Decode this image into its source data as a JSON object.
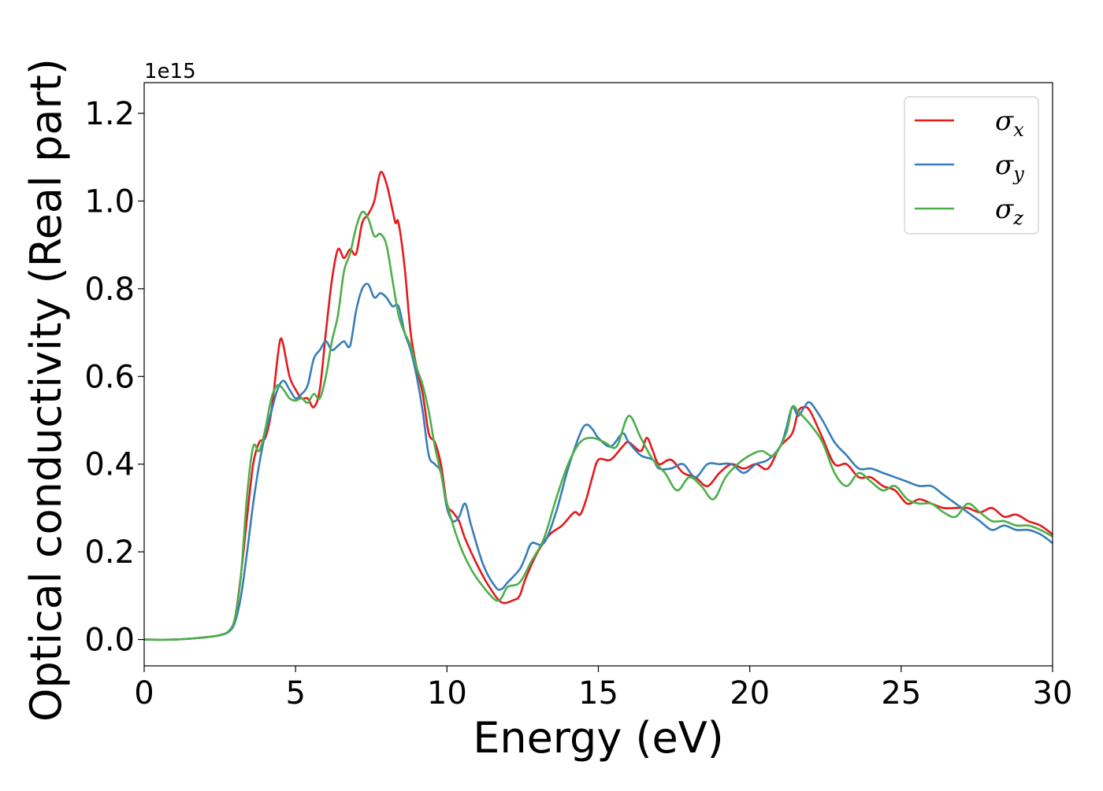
{
  "chart_data": {
    "type": "line",
    "xlabel": "Energy (eV)",
    "ylabel": "Optical conductivity (Real part)",
    "y_offset_label": "1e15",
    "xlim": [
      0,
      30
    ],
    "ylim": [
      -0.06,
      1.27
    ],
    "x_ticks": [
      0,
      5,
      10,
      15,
      20,
      25,
      30
    ],
    "x_tick_labels": [
      "0",
      "5",
      "10",
      "15",
      "20",
      "25",
      "30"
    ],
    "y_ticks": [
      0.0,
      0.2,
      0.4,
      0.6,
      0.8,
      1.0,
      1.2
    ],
    "y_tick_labels": [
      "0.0",
      "0.2",
      "0.4",
      "0.6",
      "0.8",
      "1.0",
      "1.2"
    ],
    "grid": false,
    "legend_position": "top-right",
    "series": [
      {
        "name": "σ_x",
        "label_base": "σ",
        "label_sub": "x",
        "color": "#e41a1c",
        "points": [
          [
            0,
            0
          ],
          [
            1,
            0
          ],
          [
            2,
            0.005
          ],
          [
            2.5,
            0.01
          ],
          [
            2.8,
            0.02
          ],
          [
            3.0,
            0.05
          ],
          [
            3.2,
            0.15
          ],
          [
            3.4,
            0.28
          ],
          [
            3.6,
            0.4
          ],
          [
            3.8,
            0.45
          ],
          [
            4.0,
            0.46
          ],
          [
            4.2,
            0.52
          ],
          [
            4.4,
            0.64
          ],
          [
            4.5,
            0.685
          ],
          [
            4.6,
            0.67
          ],
          [
            4.8,
            0.6
          ],
          [
            5.0,
            0.57
          ],
          [
            5.2,
            0.55
          ],
          [
            5.4,
            0.55
          ],
          [
            5.6,
            0.53
          ],
          [
            5.8,
            0.57
          ],
          [
            6.0,
            0.7
          ],
          [
            6.2,
            0.82
          ],
          [
            6.4,
            0.89
          ],
          [
            6.6,
            0.87
          ],
          [
            6.8,
            0.89
          ],
          [
            7.0,
            0.88
          ],
          [
            7.2,
            0.95
          ],
          [
            7.4,
            0.97
          ],
          [
            7.6,
            1.0
          ],
          [
            7.8,
            1.065
          ],
          [
            8.0,
            1.04
          ],
          [
            8.2,
            0.98
          ],
          [
            8.3,
            0.95
          ],
          [
            8.4,
            0.95
          ],
          [
            8.6,
            0.85
          ],
          [
            8.8,
            0.7
          ],
          [
            9.0,
            0.62
          ],
          [
            9.2,
            0.56
          ],
          [
            9.4,
            0.47
          ],
          [
            9.6,
            0.45
          ],
          [
            9.8,
            0.4
          ],
          [
            10.0,
            0.31
          ],
          [
            10.2,
            0.29
          ],
          [
            10.4,
            0.27
          ],
          [
            10.6,
            0.23
          ],
          [
            11.0,
            0.17
          ],
          [
            11.4,
            0.12
          ],
          [
            11.8,
            0.085
          ],
          [
            12.2,
            0.09
          ],
          [
            12.4,
            0.1
          ],
          [
            12.6,
            0.14
          ],
          [
            13.0,
            0.2
          ],
          [
            13.4,
            0.24
          ],
          [
            13.8,
            0.26
          ],
          [
            14.2,
            0.29
          ],
          [
            14.4,
            0.285
          ],
          [
            14.6,
            0.32
          ],
          [
            14.8,
            0.37
          ],
          [
            15.0,
            0.41
          ],
          [
            15.4,
            0.41
          ],
          [
            15.8,
            0.44
          ],
          [
            16.0,
            0.45
          ],
          [
            16.4,
            0.43
          ],
          [
            16.6,
            0.46
          ],
          [
            16.8,
            0.43
          ],
          [
            17.0,
            0.4
          ],
          [
            17.4,
            0.41
          ],
          [
            17.8,
            0.38
          ],
          [
            18.2,
            0.37
          ],
          [
            18.6,
            0.35
          ],
          [
            19.0,
            0.38
          ],
          [
            19.4,
            0.4
          ],
          [
            19.8,
            0.39
          ],
          [
            20.2,
            0.4
          ],
          [
            20.6,
            0.39
          ],
          [
            21.0,
            0.44
          ],
          [
            21.4,
            0.47
          ],
          [
            21.6,
            0.52
          ],
          [
            21.8,
            0.53
          ],
          [
            22.0,
            0.52
          ],
          [
            22.4,
            0.46
          ],
          [
            22.8,
            0.4
          ],
          [
            23.2,
            0.4
          ],
          [
            23.6,
            0.37
          ],
          [
            24.0,
            0.37
          ],
          [
            24.4,
            0.35
          ],
          [
            24.8,
            0.34
          ],
          [
            25.2,
            0.31
          ],
          [
            25.6,
            0.32
          ],
          [
            26.0,
            0.31
          ],
          [
            26.4,
            0.3
          ],
          [
            26.8,
            0.3
          ],
          [
            27.2,
            0.3
          ],
          [
            27.6,
            0.29
          ],
          [
            28.0,
            0.3
          ],
          [
            28.4,
            0.28
          ],
          [
            28.8,
            0.285
          ],
          [
            29.2,
            0.27
          ],
          [
            29.6,
            0.26
          ],
          [
            30.0,
            0.24
          ]
        ]
      },
      {
        "name": "σ_y",
        "label_base": "σ",
        "label_sub": "y",
        "color": "#377eb8",
        "points": [
          [
            0,
            0
          ],
          [
            1,
            0
          ],
          [
            2,
            0.005
          ],
          [
            2.5,
            0.01
          ],
          [
            2.8,
            0.018
          ],
          [
            3.0,
            0.04
          ],
          [
            3.2,
            0.1
          ],
          [
            3.4,
            0.2
          ],
          [
            3.6,
            0.31
          ],
          [
            3.8,
            0.4
          ],
          [
            4.0,
            0.47
          ],
          [
            4.2,
            0.52
          ],
          [
            4.4,
            0.57
          ],
          [
            4.6,
            0.59
          ],
          [
            4.8,
            0.57
          ],
          [
            5.0,
            0.55
          ],
          [
            5.2,
            0.56
          ],
          [
            5.4,
            0.58
          ],
          [
            5.6,
            0.64
          ],
          [
            5.8,
            0.66
          ],
          [
            6.0,
            0.68
          ],
          [
            6.2,
            0.66
          ],
          [
            6.4,
            0.67
          ],
          [
            6.6,
            0.68
          ],
          [
            6.8,
            0.67
          ],
          [
            7.0,
            0.75
          ],
          [
            7.2,
            0.8
          ],
          [
            7.4,
            0.81
          ],
          [
            7.6,
            0.78
          ],
          [
            7.8,
            0.79
          ],
          [
            8.0,
            0.78
          ],
          [
            8.2,
            0.76
          ],
          [
            8.4,
            0.76
          ],
          [
            8.6,
            0.7
          ],
          [
            8.8,
            0.66
          ],
          [
            9.0,
            0.6
          ],
          [
            9.2,
            0.52
          ],
          [
            9.4,
            0.42
          ],
          [
            9.6,
            0.4
          ],
          [
            9.8,
            0.38
          ],
          [
            10.0,
            0.3
          ],
          [
            10.2,
            0.27
          ],
          [
            10.4,
            0.28
          ],
          [
            10.6,
            0.31
          ],
          [
            10.8,
            0.26
          ],
          [
            11.2,
            0.17
          ],
          [
            11.6,
            0.12
          ],
          [
            11.8,
            0.115
          ],
          [
            12.0,
            0.13
          ],
          [
            12.4,
            0.16
          ],
          [
            12.6,
            0.19
          ],
          [
            12.8,
            0.22
          ],
          [
            13.2,
            0.22
          ],
          [
            13.6,
            0.29
          ],
          [
            14.0,
            0.39
          ],
          [
            14.4,
            0.47
          ],
          [
            14.6,
            0.49
          ],
          [
            14.8,
            0.48
          ],
          [
            15.0,
            0.46
          ],
          [
            15.4,
            0.44
          ],
          [
            15.8,
            0.47
          ],
          [
            16.0,
            0.45
          ],
          [
            16.4,
            0.42
          ],
          [
            16.8,
            0.41
          ],
          [
            17.0,
            0.39
          ],
          [
            17.4,
            0.39
          ],
          [
            17.8,
            0.4
          ],
          [
            18.2,
            0.37
          ],
          [
            18.6,
            0.4
          ],
          [
            19.0,
            0.4
          ],
          [
            19.4,
            0.4
          ],
          [
            19.8,
            0.38
          ],
          [
            20.2,
            0.4
          ],
          [
            20.6,
            0.41
          ],
          [
            21.0,
            0.44
          ],
          [
            21.2,
            0.48
          ],
          [
            21.4,
            0.53
          ],
          [
            21.6,
            0.51
          ],
          [
            21.8,
            0.53
          ],
          [
            22.0,
            0.54
          ],
          [
            22.4,
            0.5
          ],
          [
            22.8,
            0.45
          ],
          [
            23.2,
            0.42
          ],
          [
            23.6,
            0.39
          ],
          [
            24.0,
            0.39
          ],
          [
            24.4,
            0.38
          ],
          [
            24.8,
            0.37
          ],
          [
            25.2,
            0.36
          ],
          [
            25.6,
            0.35
          ],
          [
            26.0,
            0.35
          ],
          [
            26.4,
            0.33
          ],
          [
            26.8,
            0.31
          ],
          [
            27.2,
            0.29
          ],
          [
            27.6,
            0.27
          ],
          [
            28.0,
            0.25
          ],
          [
            28.4,
            0.26
          ],
          [
            28.8,
            0.25
          ],
          [
            29.2,
            0.25
          ],
          [
            29.6,
            0.24
          ],
          [
            30.0,
            0.22
          ]
        ]
      },
      {
        "name": "σ_z",
        "label_base": "σ",
        "label_sub": "z",
        "color": "#4daf4a",
        "points": [
          [
            0,
            0
          ],
          [
            1,
            0
          ],
          [
            2,
            0.005
          ],
          [
            2.5,
            0.01
          ],
          [
            2.8,
            0.02
          ],
          [
            3.0,
            0.05
          ],
          [
            3.2,
            0.15
          ],
          [
            3.4,
            0.33
          ],
          [
            3.6,
            0.44
          ],
          [
            3.8,
            0.43
          ],
          [
            4.0,
            0.48
          ],
          [
            4.2,
            0.55
          ],
          [
            4.4,
            0.58
          ],
          [
            4.6,
            0.57
          ],
          [
            4.8,
            0.55
          ],
          [
            5.0,
            0.545
          ],
          [
            5.2,
            0.55
          ],
          [
            5.4,
            0.54
          ],
          [
            5.6,
            0.56
          ],
          [
            5.8,
            0.55
          ],
          [
            6.0,
            0.6
          ],
          [
            6.2,
            0.68
          ],
          [
            6.4,
            0.74
          ],
          [
            6.6,
            0.84
          ],
          [
            6.8,
            0.88
          ],
          [
            7.0,
            0.94
          ],
          [
            7.2,
            0.975
          ],
          [
            7.4,
            0.96
          ],
          [
            7.6,
            0.92
          ],
          [
            7.8,
            0.925
          ],
          [
            8.0,
            0.9
          ],
          [
            8.2,
            0.82
          ],
          [
            8.4,
            0.74
          ],
          [
            8.6,
            0.7
          ],
          [
            8.8,
            0.67
          ],
          [
            9.0,
            0.62
          ],
          [
            9.2,
            0.58
          ],
          [
            9.4,
            0.52
          ],
          [
            9.6,
            0.44
          ],
          [
            9.8,
            0.38
          ],
          [
            10.0,
            0.31
          ],
          [
            10.4,
            0.22
          ],
          [
            10.8,
            0.16
          ],
          [
            11.2,
            0.12
          ],
          [
            11.6,
            0.09
          ],
          [
            11.8,
            0.095
          ],
          [
            12.0,
            0.12
          ],
          [
            12.4,
            0.13
          ],
          [
            12.8,
            0.18
          ],
          [
            13.2,
            0.23
          ],
          [
            13.6,
            0.32
          ],
          [
            14.0,
            0.4
          ],
          [
            14.4,
            0.45
          ],
          [
            14.8,
            0.46
          ],
          [
            15.2,
            0.45
          ],
          [
            15.6,
            0.44
          ],
          [
            16.0,
            0.51
          ],
          [
            16.4,
            0.46
          ],
          [
            16.8,
            0.41
          ],
          [
            17.2,
            0.38
          ],
          [
            17.6,
            0.34
          ],
          [
            18.0,
            0.37
          ],
          [
            18.4,
            0.35
          ],
          [
            18.8,
            0.32
          ],
          [
            19.2,
            0.37
          ],
          [
            19.6,
            0.4
          ],
          [
            20.0,
            0.42
          ],
          [
            20.4,
            0.43
          ],
          [
            20.8,
            0.42
          ],
          [
            21.2,
            0.47
          ],
          [
            21.4,
            0.53
          ],
          [
            21.6,
            0.52
          ],
          [
            22.0,
            0.49
          ],
          [
            22.4,
            0.45
          ],
          [
            22.8,
            0.38
          ],
          [
            23.2,
            0.35
          ],
          [
            23.6,
            0.38
          ],
          [
            24.0,
            0.36
          ],
          [
            24.4,
            0.34
          ],
          [
            24.8,
            0.35
          ],
          [
            25.2,
            0.32
          ],
          [
            25.6,
            0.31
          ],
          [
            26.0,
            0.31
          ],
          [
            26.4,
            0.29
          ],
          [
            26.8,
            0.28
          ],
          [
            27.2,
            0.31
          ],
          [
            27.6,
            0.29
          ],
          [
            28.0,
            0.27
          ],
          [
            28.4,
            0.27
          ],
          [
            28.8,
            0.26
          ],
          [
            29.2,
            0.26
          ],
          [
            29.6,
            0.25
          ],
          [
            30.0,
            0.235
          ]
        ]
      }
    ]
  }
}
